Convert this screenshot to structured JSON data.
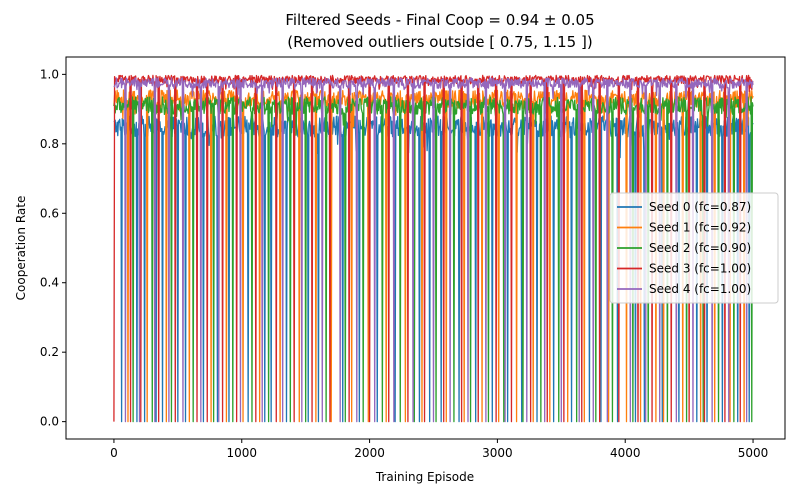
{
  "chart_data": {
    "type": "line",
    "title": "Filtered Seeds - Final Coop = 0.94 ± 0.05",
    "subtitle": "(Removed outliers outside [ 0.75, 1.15 ])",
    "xlabel": "Training Episode",
    "ylabel": "Cooperation Rate",
    "xlim": [
      -375,
      5250
    ],
    "ylim": [
      -0.05,
      1.05
    ],
    "xticks": [
      0,
      1000,
      2000,
      3000,
      4000,
      5000
    ],
    "xtick_labels": [
      "0",
      "1000",
      "2000",
      "3000",
      "4000",
      "5000"
    ],
    "yticks": [
      0.0,
      0.2,
      0.4,
      0.6,
      0.8,
      1.0
    ],
    "ytick_labels": [
      "0.0",
      "0.2",
      "0.4",
      "0.6",
      "0.8",
      "1.0"
    ],
    "grid": false,
    "legend_position": "center-right",
    "episodes": 5000,
    "series": [
      {
        "name": "Seed 0 (fc=0.87)",
        "color": "#1f77b4",
        "typical_value": 0.85,
        "noise": 0.03,
        "dip_value": 0.0,
        "dip_episodes": [
          60,
          180,
          240,
          330,
          380,
          500,
          560,
          700,
          810,
          900,
          1050,
          1180,
          1230,
          1350,
          1520,
          1600,
          1790,
          1920,
          2060,
          2200,
          2390,
          2470,
          2560,
          2700,
          2830,
          2960,
          3080,
          3190,
          3310,
          3440,
          3580,
          3720,
          3810,
          3940,
          4080,
          4150,
          4290,
          4420,
          4560,
          4640,
          4760,
          4880,
          4970
        ]
      },
      {
        "name": "Seed 1 (fc=0.92)",
        "color": "#ff7f0e",
        "typical_value": 0.93,
        "noise": 0.025,
        "dip_value": 0.0,
        "dip_episodes": [
          110,
          260,
          410,
          590,
          760,
          880,
          1010,
          1140,
          1300,
          1450,
          1580,
          1700,
          1860,
          1990,
          2130,
          2280,
          2410,
          2600,
          2740,
          2880,
          3010,
          3150,
          3280,
          3410,
          3550,
          3680,
          3870,
          4010,
          4120,
          4240,
          4300,
          4450,
          4590,
          4700,
          4820,
          4930
        ]
      },
      {
        "name": "Seed 2 (fc=0.90)",
        "color": "#2ca02c",
        "typical_value": 0.91,
        "noise": 0.025,
        "dip_value": 0.0,
        "dip_episodes": [
          150,
          300,
          450,
          620,
          780,
          930,
          1080,
          1210,
          1380,
          1500,
          1660,
          1810,
          1950,
          2100,
          2240,
          2350,
          2520,
          2660,
          2790,
          2930,
          3050,
          3200,
          3340,
          3480,
          3620,
          3770,
          3900,
          4060,
          4180,
          4330,
          4480,
          4610,
          4730,
          4850,
          4990
        ]
      },
      {
        "name": "Seed 3 (fc=1.00)",
        "color": "#d62728",
        "typical_value": 0.985,
        "noise": 0.012,
        "dip_value": 0.0,
        "dip_episodes": [
          0,
          130,
          210,
          350,
          480,
          650,
          730,
          850,
          960,
          1110,
          1270,
          1410,
          1550,
          1690,
          1840,
          2000,
          2150,
          2300,
          2430,
          2580,
          2720,
          2850,
          2990,
          3110,
          3260,
          3390,
          3520,
          3660,
          3800,
          3950,
          4100,
          4210,
          4360,
          4500,
          4620,
          4780,
          4900
        ]
      },
      {
        "name": "Seed 4 (fc=1.00)",
        "color": "#9467bd",
        "typical_value": 0.975,
        "noise": 0.015,
        "dip_value": 0.0,
        "dip_episodes": [
          90,
          200,
          320,
          430,
          540,
          680,
          820,
          990,
          1160,
          1320,
          1470,
          1630,
          1770,
          1900,
          2040,
          2190,
          2340,
          2500,
          2630,
          2770,
          2910,
          3060,
          3230,
          3370,
          3500,
          3640,
          3750,
          3860,
          4040,
          4160,
          4270,
          4400,
          4530,
          4680,
          4810,
          4950
        ]
      }
    ]
  }
}
